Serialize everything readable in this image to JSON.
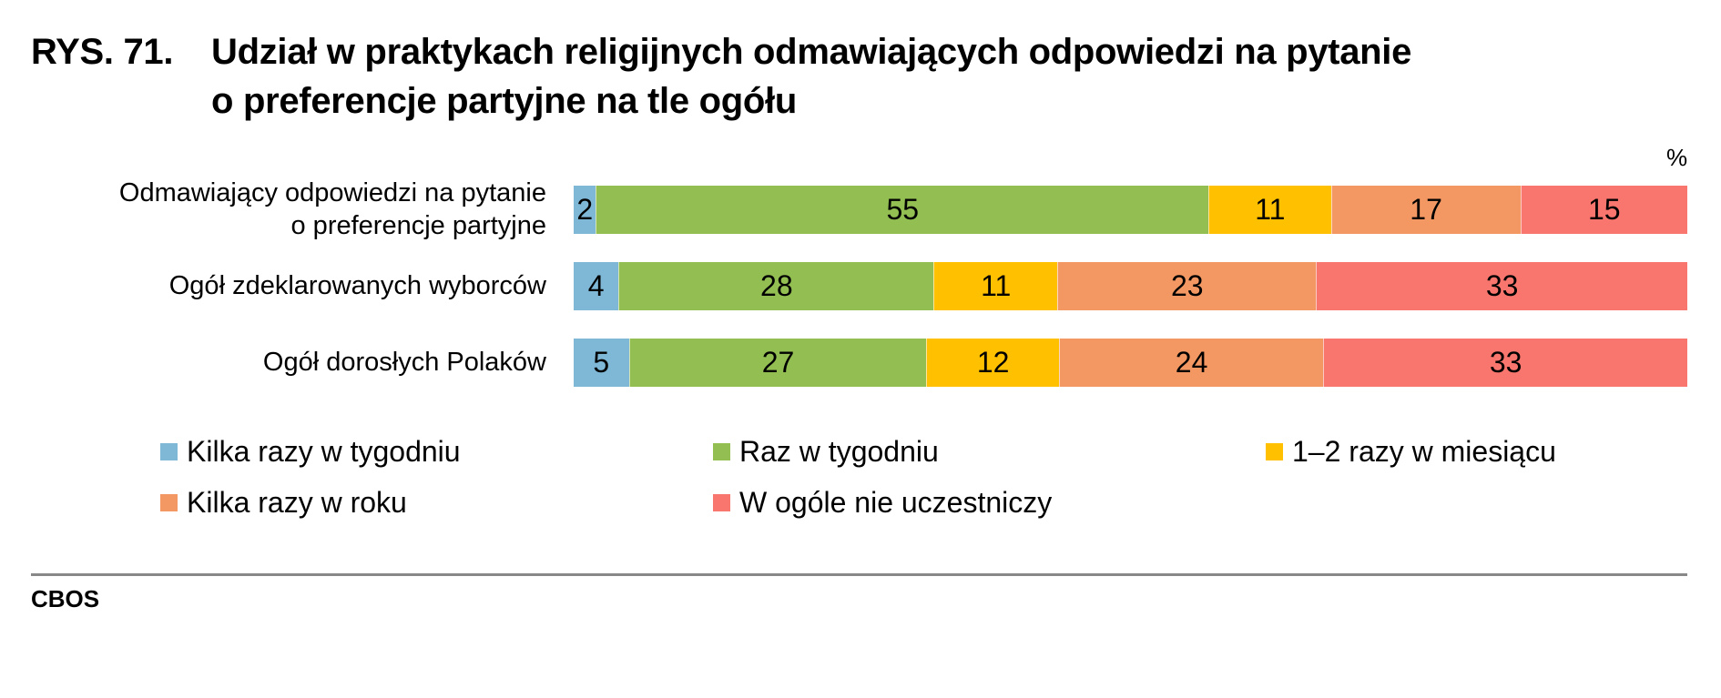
{
  "header": {
    "figure_number": "RYS. 71.",
    "title_line1": "Udział w praktykach religijnych odmawiających odpowiedzi na pytanie",
    "title_line2": "o preferencje partyjne na tle ogółu"
  },
  "unit_label": "%",
  "footer": {
    "source": "CBOS"
  },
  "colors": {
    "kilka_razy_w_tygodniu": "#7EB8D6",
    "raz_w_tygodniu": "#93BF52",
    "raz_dwa_w_miesiacu": "#FFC000",
    "kilka_razy_w_roku": "#F39862",
    "w_ogole": "#F8766D",
    "rule": "#888888"
  },
  "rows": [
    {
      "label_line1": "Odmawiający odpowiedzi na pytanie",
      "label_line2": "o preferencje partyjne",
      "values": [
        "2",
        "55",
        "11",
        "17",
        "15"
      ]
    },
    {
      "label_line1": "Ogół zdeklarowanych wyborców",
      "label_line2": "",
      "values": [
        "4",
        "28",
        "11",
        "23",
        "33"
      ]
    },
    {
      "label_line1": "Ogół dorosłych Polaków",
      "label_line2": "",
      "values": [
        "5",
        "27",
        "12",
        "24",
        "33"
      ]
    }
  ],
  "legend": [
    {
      "label": "Kilka razy w tygodniu",
      "color": "#7EB8D6"
    },
    {
      "label": "Raz w tygodniu",
      "color": "#93BF52"
    },
    {
      "label": "1–2 razy w miesiącu",
      "color": "#FFC000"
    },
    {
      "label": "Kilka razy w roku",
      "color": "#F39862"
    },
    {
      "label": "W ogóle nie uczestniczy",
      "color": "#F8766D"
    }
  ],
  "chart_data": {
    "type": "bar",
    "orientation": "horizontal",
    "stacked": true,
    "title": "RYS. 71. Udział w praktykach religijnych odmawiających odpowiedzi na pytanie o preferencje partyjne na tle ogółu",
    "xlabel": "",
    "ylabel": "",
    "unit": "%",
    "xlim": [
      0,
      100
    ],
    "grid": false,
    "legend_position": "bottom",
    "categories": [
      "Odmawiający odpowiedzi na pytanie o preferencje partyjne",
      "Ogół zdeklarowanych wyborców",
      "Ogół dorosłych Polaków"
    ],
    "series": [
      {
        "name": "Kilka razy w tygodniu",
        "color": "#7EB8D6",
        "values": [
          2,
          4,
          5
        ]
      },
      {
        "name": "Raz w tygodniu",
        "color": "#93BF52",
        "values": [
          55,
          28,
          27
        ]
      },
      {
        "name": "1–2 razy w miesiącu",
        "color": "#FFC000",
        "values": [
          11,
          11,
          12
        ]
      },
      {
        "name": "Kilka razy w roku",
        "color": "#F39862",
        "values": [
          17,
          23,
          24
        ]
      },
      {
        "name": "W ogóle nie uczestniczy",
        "color": "#F8766D",
        "values": [
          15,
          33,
          33
        ]
      }
    ],
    "source": "CBOS"
  }
}
